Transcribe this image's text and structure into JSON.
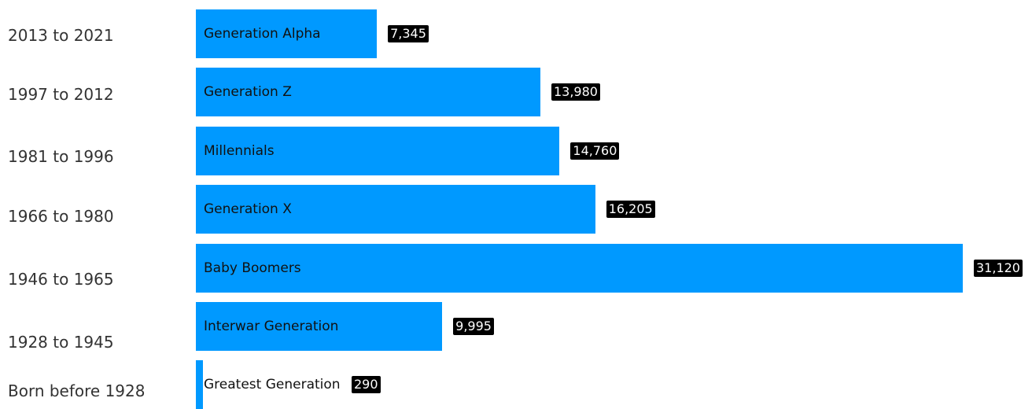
{
  "chart_data": {
    "type": "bar",
    "orientation": "horizontal",
    "categories": [
      "2013 to 2021",
      "1997 to 2012",
      "1981 to 1996",
      "1966 to 1980",
      "1946 to 1965",
      "1928 to 1945",
      "Born before 1928"
    ],
    "bar_labels": [
      "Generation Alpha",
      "Generation Z",
      "Millennials",
      "Generation X",
      "Baby Boomers",
      "Interwar Generation",
      "Greatest Generation"
    ],
    "values": [
      7345,
      13980,
      14760,
      16205,
      31120,
      9995,
      290
    ],
    "value_labels": [
      "7,345",
      "13,980",
      "14,760",
      "16,205",
      "31,120",
      "9,995",
      "290"
    ],
    "xlim": [
      0,
      31120
    ],
    "colors": {
      "bar": "#0099ff",
      "badge_bg": "#000000",
      "badge_text": "#ffffff"
    },
    "grid": false,
    "legend": "none"
  }
}
